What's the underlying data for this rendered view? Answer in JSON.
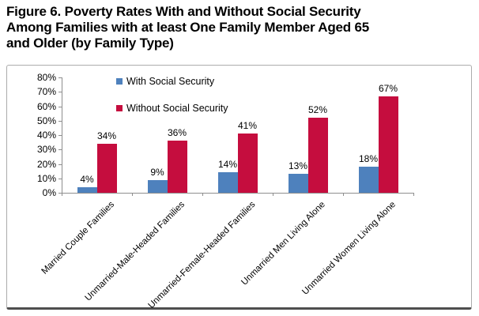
{
  "header": {
    "title_lines": [
      "Figure 6. Poverty Rates With and Without Social Security",
      "Among Families with at least One Family Member Aged 65",
      "and Older (by Family Type)"
    ]
  },
  "chart_data": {
    "type": "bar",
    "categories": [
      "Married Couple Families",
      "Unmarried-Male-Headed Families",
      "Unmarried-Female-Headed Families",
      "Unmarried Men Living Alone",
      "Unmarried Women Living Alone"
    ],
    "series": [
      {
        "name": "With Social Security",
        "color": "#4E81BD",
        "values": [
          4,
          9,
          14,
          13,
          18
        ]
      },
      {
        "name": "Without Social Security",
        "color": "#C50D3E",
        "values": [
          34,
          36,
          41,
          52,
          67
        ]
      }
    ],
    "value_suffix": "%",
    "ylim": [
      0,
      80
    ],
    "ytick_step": 10,
    "ytick_labels": [
      "0%",
      "10%",
      "20%",
      "30%",
      "40%",
      "50%",
      "60%",
      "70%",
      "80%"
    ],
    "grid": false,
    "data_labels": true,
    "legend_position": "top-inside-left"
  },
  "colors": {
    "axis": "#8E8E8E",
    "text": "#000000",
    "frame_border": "#ACACAC",
    "frame_shadow": "#4E4E4E",
    "background": "#FFFFFF"
  }
}
